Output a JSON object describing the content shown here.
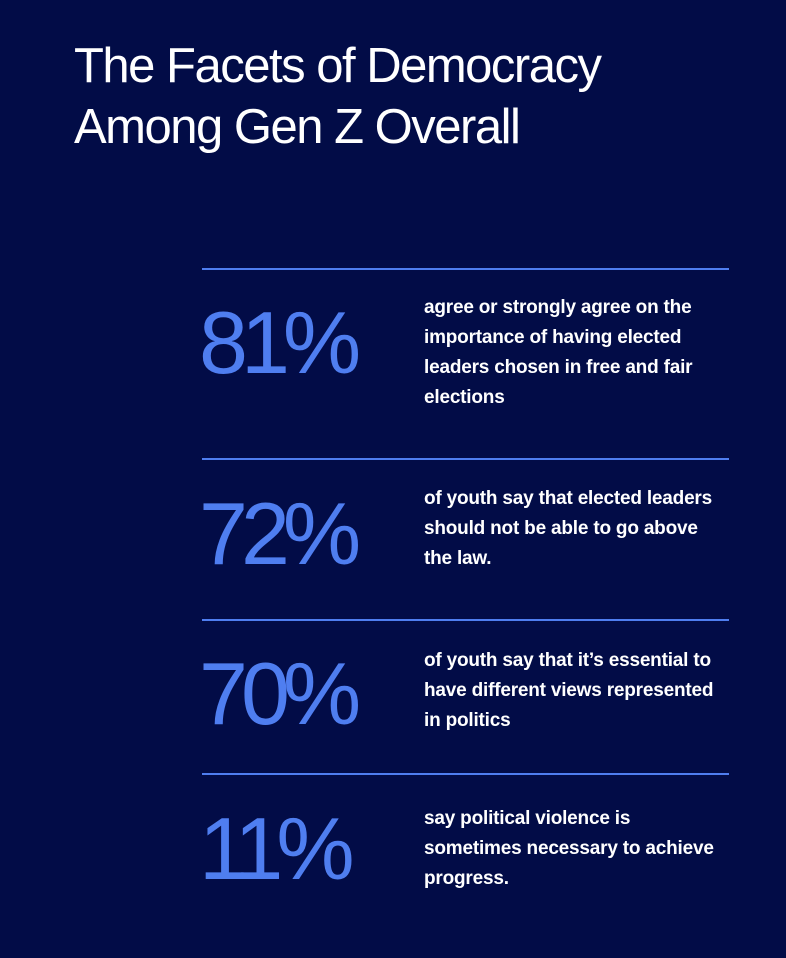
{
  "title": {
    "line1": "The Facets of Democracy",
    "line2": "Among Gen Z Overall"
  },
  "colors": {
    "background": "#020c47",
    "accent": "#4f7ef0",
    "text": "#ffffff"
  },
  "stats": [
    {
      "value": "81%",
      "description": "agree or strongly agree on the importance of having elected leaders chosen in free and fair elections"
    },
    {
      "value": "72%",
      "description": "of youth say that elected leaders should not be able to go above the law."
    },
    {
      "value": "70%",
      "description": "of youth say that it’s essential to have different views represented in politics"
    },
    {
      "value": "11%",
      "description": "say political violence is sometimes necessary to achieve progress."
    }
  ]
}
